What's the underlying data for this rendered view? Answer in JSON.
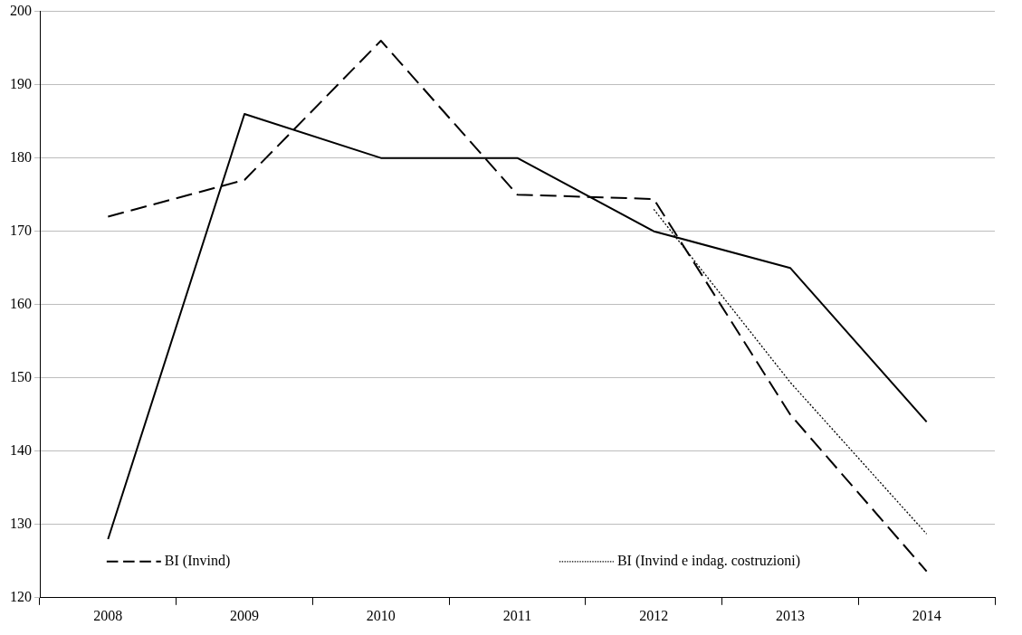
{
  "chart_data": {
    "type": "line",
    "categories": [
      "2008",
      "2009",
      "2010",
      "2011",
      "2012",
      "2013",
      "2014"
    ],
    "series": [
      {
        "name": "BI (Invind)",
        "color": "#000000",
        "line_style": "dashed",
        "values": [
          172,
          177,
          196,
          175,
          174.4,
          145,
          123.6
        ]
      },
      {
        "color": "#000000",
        "line_style": "solid",
        "values": [
          128,
          186,
          180,
          180,
          170,
          165,
          144
        ]
      },
      {
        "name": "BI (Invind e indag. costruzioni)",
        "color": "#000000",
        "line_style": "dotted",
        "values": [
          null,
          null,
          null,
          null,
          173,
          149.4,
          128.7
        ]
      }
    ],
    "ylim": [
      120,
      200
    ],
    "yticks": [
      120,
      130,
      140,
      150,
      160,
      170,
      180,
      190,
      200
    ],
    "grid": "y",
    "legend": "bottom left",
    "marker": "none"
  }
}
